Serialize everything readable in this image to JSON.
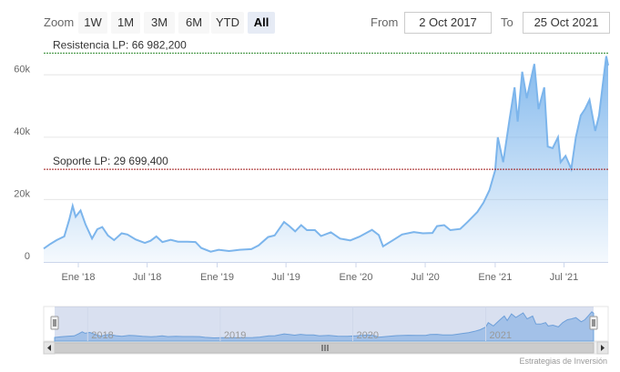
{
  "range_selector": {
    "zoom_label": "Zoom",
    "buttons": [
      "1W",
      "1M",
      "3M",
      "6M",
      "YTD",
      "All"
    ],
    "active": "All",
    "from_label": "From",
    "from_value": "2 Oct 2017",
    "to_label": "To",
    "to_value": "25 Oct 2021"
  },
  "chart_data": {
    "type": "area",
    "title": "",
    "xlabel": "",
    "ylabel": "",
    "x_range": [
      "2017-10-02",
      "2021-10-25"
    ],
    "ylim": [
      0,
      70000
    ],
    "y_ticks": [
      "0",
      "20k",
      "40k",
      "60k"
    ],
    "x_ticks": [
      "Ene '18",
      "Jul '18",
      "Ene '19",
      "Jul '19",
      "Ene '20",
      "Jul '20",
      "Ene '21",
      "Jul '21"
    ],
    "grid": true,
    "series_color": "#7cb5ec",
    "series": [
      {
        "name": "",
        "points": [
          [
            "2017-10-02",
            4300
          ],
          [
            "2017-10-20",
            5800
          ],
          [
            "2017-11-05",
            7000
          ],
          [
            "2017-11-25",
            8200
          ],
          [
            "2017-12-08",
            13500
          ],
          [
            "2017-12-17",
            18000
          ],
          [
            "2017-12-25",
            14500
          ],
          [
            "2018-01-07",
            16500
          ],
          [
            "2018-01-20",
            12000
          ],
          [
            "2018-02-06",
            7500
          ],
          [
            "2018-02-20",
            10500
          ],
          [
            "2018-03-05",
            11200
          ],
          [
            "2018-03-20",
            8500
          ],
          [
            "2018-04-05",
            7000
          ],
          [
            "2018-04-25",
            9200
          ],
          [
            "2018-05-10",
            8800
          ],
          [
            "2018-06-01",
            7200
          ],
          [
            "2018-06-25",
            6100
          ],
          [
            "2018-07-10",
            6800
          ],
          [
            "2018-07-25",
            8200
          ],
          [
            "2018-08-10",
            6400
          ],
          [
            "2018-09-01",
            7100
          ],
          [
            "2018-09-20",
            6500
          ],
          [
            "2018-10-15",
            6500
          ],
          [
            "2018-11-05",
            6400
          ],
          [
            "2018-11-20",
            4500
          ],
          [
            "2018-12-15",
            3300
          ],
          [
            "2019-01-05",
            3900
          ],
          [
            "2019-02-01",
            3500
          ],
          [
            "2019-03-01",
            3900
          ],
          [
            "2019-04-01",
            4100
          ],
          [
            "2019-04-20",
            5300
          ],
          [
            "2019-05-15",
            8000
          ],
          [
            "2019-06-01",
            8500
          ],
          [
            "2019-06-26",
            12800
          ],
          [
            "2019-07-10",
            11500
          ],
          [
            "2019-07-25",
            9800
          ],
          [
            "2019-08-10",
            11800
          ],
          [
            "2019-08-25",
            10200
          ],
          [
            "2019-09-15",
            10200
          ],
          [
            "2019-10-01",
            8300
          ],
          [
            "2019-10-27",
            9500
          ],
          [
            "2019-11-20",
            7500
          ],
          [
            "2019-12-17",
            6900
          ],
          [
            "2020-01-10",
            8100
          ],
          [
            "2020-02-12",
            10300
          ],
          [
            "2020-03-01",
            8600
          ],
          [
            "2020-03-12",
            5000
          ],
          [
            "2020-04-05",
            6800
          ],
          [
            "2020-05-01",
            8800
          ],
          [
            "2020-06-01",
            9600
          ],
          [
            "2020-06-25",
            9200
          ],
          [
            "2020-07-20",
            9300
          ],
          [
            "2020-08-01",
            11500
          ],
          [
            "2020-08-20",
            11800
          ],
          [
            "2020-09-05",
            10200
          ],
          [
            "2020-10-01",
            10600
          ],
          [
            "2020-10-21",
            12900
          ],
          [
            "2020-11-15",
            16000
          ],
          [
            "2020-12-01",
            19000
          ],
          [
            "2020-12-17",
            23000
          ],
          [
            "2021-01-01",
            29400
          ],
          [
            "2021-01-08",
            40000
          ],
          [
            "2021-01-22",
            32000
          ],
          [
            "2021-02-08",
            46000
          ],
          [
            "2021-02-21",
            56000
          ],
          [
            "2021-03-01",
            45000
          ],
          [
            "2021-03-13",
            61000
          ],
          [
            "2021-03-25",
            52500
          ],
          [
            "2021-04-14",
            63500
          ],
          [
            "2021-04-25",
            49000
          ],
          [
            "2021-05-10",
            56000
          ],
          [
            "2021-05-19",
            37000
          ],
          [
            "2021-06-01",
            36500
          ],
          [
            "2021-06-15",
            40000
          ],
          [
            "2021-06-22",
            32000
          ],
          [
            "2021-07-05",
            34000
          ],
          [
            "2021-07-20",
            29800
          ],
          [
            "2021-08-01",
            40000
          ],
          [
            "2021-08-14",
            47000
          ],
          [
            "2021-08-25",
            49000
          ],
          [
            "2021-09-06",
            52000
          ],
          [
            "2021-09-21",
            42000
          ],
          [
            "2021-10-01",
            47000
          ],
          [
            "2021-10-10",
            56000
          ],
          [
            "2021-10-20",
            66000
          ],
          [
            "2021-10-25",
            63000
          ]
        ]
      }
    ],
    "plot_lines": [
      {
        "label": "Resistencia LP: 66 982,200",
        "value": 66982.2,
        "color": "#2e8b2e"
      },
      {
        "label": "Soporte LP: 29 699,400",
        "value": 29699.4,
        "color": "#a01818"
      }
    ],
    "navigator": {
      "years": [
        "2018",
        "2019",
        "2020",
        "2021"
      ]
    },
    "credits": "Estrategias de Inversión"
  }
}
